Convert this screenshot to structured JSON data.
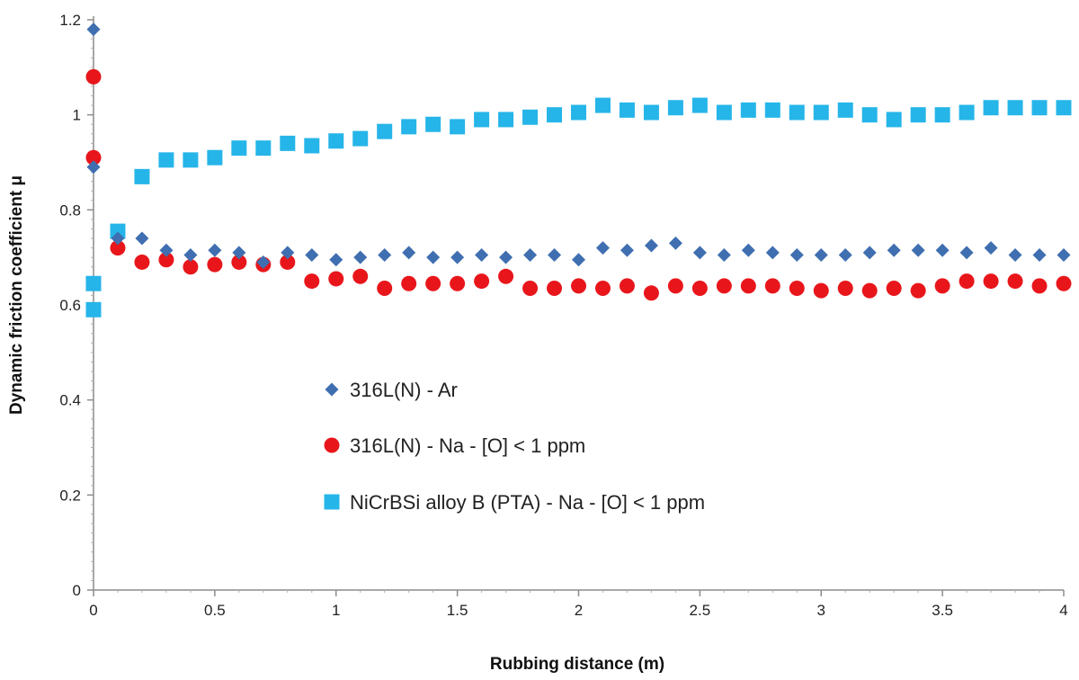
{
  "chart_data": {
    "type": "scatter",
    "title": "",
    "xlabel": "Rubbing distance  (m)",
    "ylabel": "Dynamic friction coefficient μ",
    "xlim": [
      0,
      4
    ],
    "ylim": [
      0,
      1.2
    ],
    "xticks": [
      0,
      0.5,
      1,
      1.5,
      2,
      2.5,
      3,
      3.5,
      4
    ],
    "xtick_labels": [
      "0",
      "0.5",
      "1",
      "1.5",
      "2",
      "2.5",
      "3",
      "3.5",
      "4"
    ],
    "yticks": [
      0,
      0.2,
      0.4,
      0.6,
      0.8,
      1,
      1.2
    ],
    "ytick_labels": [
      "0",
      "0.2",
      "0.4",
      "0.6",
      "0.8",
      "1",
      "1.2"
    ],
    "grid": false,
    "legend_position": "center-left",
    "series": [
      {
        "name": "316L(N) - Ar",
        "marker": "diamond",
        "color": "#3f6fb0",
        "x": [
          0,
          0,
          0.1,
          0.2,
          0.3,
          0.4,
          0.5,
          0.6,
          0.7,
          0.8,
          0.9,
          1.0,
          1.1,
          1.2,
          1.3,
          1.4,
          1.5,
          1.6,
          1.7,
          1.8,
          1.9,
          2.0,
          2.1,
          2.2,
          2.3,
          2.4,
          2.5,
          2.6,
          2.7,
          2.8,
          2.9,
          3.0,
          3.1,
          3.2,
          3.3,
          3.4,
          3.5,
          3.6,
          3.7,
          3.8,
          3.9,
          4.0
        ],
        "y": [
          1.18,
          0.89,
          0.74,
          0.74,
          0.715,
          0.705,
          0.715,
          0.71,
          0.69,
          0.71,
          0.705,
          0.695,
          0.7,
          0.705,
          0.71,
          0.7,
          0.7,
          0.705,
          0.7,
          0.705,
          0.705,
          0.695,
          0.72,
          0.715,
          0.725,
          0.73,
          0.71,
          0.705,
          0.715,
          0.71,
          0.705,
          0.705,
          0.705,
          0.71,
          0.715,
          0.715,
          0.715,
          0.71,
          0.72,
          0.705,
          0.705,
          0.705
        ]
      },
      {
        "name": "316L(N) - Na - [O] < 1 ppm",
        "marker": "circle",
        "color": "#e8161b",
        "x": [
          0,
          0,
          0.1,
          0.2,
          0.3,
          0.4,
          0.5,
          0.6,
          0.7,
          0.8,
          0.9,
          1.0,
          1.1,
          1.2,
          1.3,
          1.4,
          1.5,
          1.6,
          1.7,
          1.8,
          1.9,
          2.0,
          2.1,
          2.2,
          2.3,
          2.4,
          2.5,
          2.6,
          2.7,
          2.8,
          2.9,
          3.0,
          3.1,
          3.2,
          3.3,
          3.4,
          3.5,
          3.6,
          3.7,
          3.8,
          3.9,
          4.0
        ],
        "y": [
          1.08,
          0.91,
          0.72,
          0.69,
          0.695,
          0.68,
          0.685,
          0.69,
          0.685,
          0.69,
          0.65,
          0.655,
          0.66,
          0.635,
          0.645,
          0.645,
          0.645,
          0.65,
          0.66,
          0.635,
          0.635,
          0.64,
          0.635,
          0.64,
          0.625,
          0.64,
          0.635,
          0.64,
          0.64,
          0.64,
          0.635,
          0.63,
          0.635,
          0.63,
          0.635,
          0.63,
          0.64,
          0.65,
          0.65,
          0.65,
          0.64,
          0.645
        ]
      },
      {
        "name": "NiCrBSi alloy B (PTA) - Na - [O] < 1 ppm",
        "marker": "square",
        "color": "#26b5e9",
        "x": [
          0,
          0,
          0.1,
          0.2,
          0.3,
          0.4,
          0.5,
          0.6,
          0.7,
          0.8,
          0.9,
          1.0,
          1.1,
          1.2,
          1.3,
          1.4,
          1.5,
          1.6,
          1.7,
          1.8,
          1.9,
          2.0,
          2.1,
          2.2,
          2.3,
          2.4,
          2.5,
          2.6,
          2.7,
          2.8,
          2.9,
          3.0,
          3.1,
          3.2,
          3.3,
          3.4,
          3.5,
          3.6,
          3.7,
          3.8,
          3.9,
          4.0
        ],
        "y": [
          0.645,
          0.59,
          0.755,
          0.87,
          0.905,
          0.905,
          0.91,
          0.93,
          0.93,
          0.94,
          0.935,
          0.945,
          0.95,
          0.965,
          0.975,
          0.98,
          0.975,
          0.99,
          0.99,
          0.995,
          1.0,
          1.005,
          1.02,
          1.01,
          1.005,
          1.015,
          1.02,
          1.005,
          1.01,
          1.01,
          1.005,
          1.005,
          1.01,
          1.0,
          0.99,
          1.0,
          1.0,
          1.005,
          1.015,
          1.015,
          1.015,
          1.015
        ]
      }
    ]
  }
}
